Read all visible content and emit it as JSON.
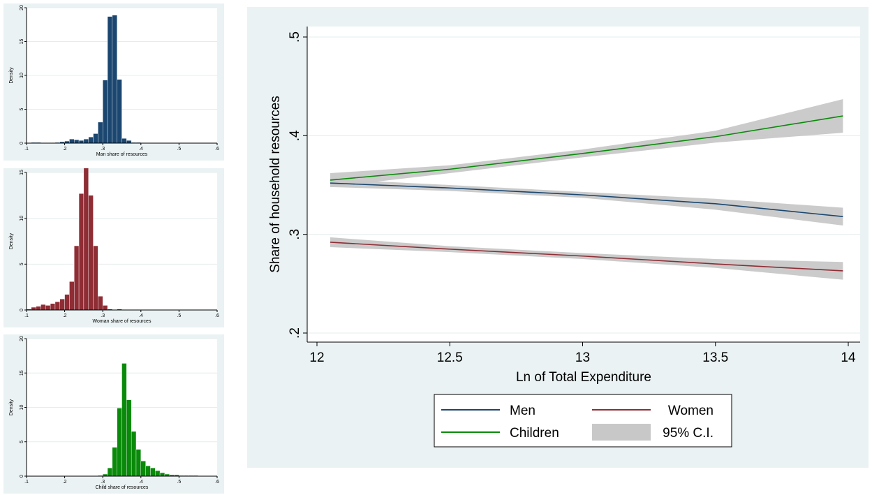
{
  "chart_data": [
    {
      "id": "man_hist",
      "type": "bar",
      "xlabel": "Man share of resources",
      "ylabel": "Density",
      "xlim": [
        0.1,
        0.6
      ],
      "ylim": [
        0,
        20
      ],
      "xticks": [
        ".1",
        ".2",
        ".3",
        ".4",
        ".5",
        ".6"
      ],
      "yticks": [
        "0",
        "5",
        "10",
        "15",
        "20"
      ],
      "color": "#1a4670",
      "bin_start": 0.1,
      "bin_width": 0.0125,
      "values": [
        0,
        0.1,
        0.1,
        0,
        0,
        0,
        0.1,
        0.2,
        0.3,
        0.6,
        0.5,
        0.4,
        0.6,
        0.9,
        1.4,
        3.1,
        9.3,
        18.7,
        18.9,
        9.4,
        0.7,
        0.4,
        0.1,
        0.1,
        0,
        0,
        0,
        0,
        0,
        0,
        0,
        0,
        0,
        0,
        0,
        0,
        0,
        0,
        0,
        0
      ]
    },
    {
      "id": "woman_hist",
      "type": "bar",
      "xlabel": "Woman share of resources",
      "ylabel": "Density",
      "xlim": [
        0.1,
        0.6
      ],
      "ylim": [
        0,
        15
      ],
      "xticks": [
        ".1",
        ".2",
        ".3",
        ".4",
        ".5",
        ".6"
      ],
      "yticks": [
        "0",
        "5",
        "10",
        "15"
      ],
      "color": "#8f2d35",
      "bin_start": 0.1,
      "bin_width": 0.0125,
      "values": [
        0.1,
        0.3,
        0.4,
        0.6,
        0.5,
        0.7,
        0.9,
        1.2,
        1.7,
        3.1,
        7.0,
        12.7,
        15.6,
        12.5,
        7.0,
        1.5,
        0.5,
        0.1,
        0,
        0.1,
        0,
        0,
        0,
        0,
        0,
        0,
        0,
        0,
        0,
        0,
        0,
        0,
        0,
        0,
        0,
        0,
        0,
        0,
        0,
        0
      ]
    },
    {
      "id": "child_hist",
      "type": "bar",
      "xlabel": "Child share of resources",
      "ylabel": "Density",
      "xlim": [
        0.1,
        0.6
      ],
      "ylim": [
        0,
        20
      ],
      "xticks": [
        ".1",
        ".2",
        ".3",
        ".4",
        ".5",
        ".6"
      ],
      "yticks": [
        "0",
        "5",
        "10",
        "15",
        "20"
      ],
      "color": "#0a8a0a",
      "bin_start": 0.1,
      "bin_width": 0.0125,
      "values": [
        0,
        0,
        0,
        0,
        0,
        0,
        0,
        0,
        0,
        0,
        0,
        0,
        0,
        0,
        0,
        0.1,
        0.3,
        1.2,
        4.2,
        9.9,
        16.4,
        11.1,
        6.5,
        3.9,
        2.2,
        1.5,
        1.2,
        0.8,
        0.5,
        0.3,
        0.2,
        0.2,
        0.1,
        0.1,
        0.1,
        0.1,
        0,
        0,
        0,
        0
      ]
    },
    {
      "id": "shares_line",
      "type": "line",
      "xlabel": "Ln of Total Expenditure",
      "ylabel": "Share of household resources",
      "xlim": [
        12,
        14
      ],
      "ylim": [
        0.2,
        0.5
      ],
      "xticks": [
        "12",
        "12.5",
        "13",
        "13.5",
        "14"
      ],
      "yticks": [
        ".2",
        ".3",
        ".4",
        ".5"
      ],
      "x": [
        12.05,
        12.5,
        13.0,
        13.5,
        13.98
      ],
      "series": [
        {
          "name": "Men",
          "color": "#1a4670",
          "values": [
            0.352,
            0.347,
            0.34,
            0.331,
            0.318
          ],
          "ci_low": [
            0.348,
            0.344,
            0.337,
            0.325,
            0.309
          ],
          "ci_high": [
            0.356,
            0.35,
            0.343,
            0.336,
            0.327
          ]
        },
        {
          "name": "Women",
          "color": "#8f2d35",
          "values": [
            0.292,
            0.285,
            0.278,
            0.27,
            0.263
          ],
          "ci_low": [
            0.287,
            0.282,
            0.275,
            0.266,
            0.254
          ],
          "ci_high": [
            0.297,
            0.288,
            0.281,
            0.275,
            0.272
          ]
        },
        {
          "name": "Children",
          "color": "#0a8a0a",
          "values": [
            0.355,
            0.366,
            0.382,
            0.399,
            0.42
          ],
          "ci_low": [
            0.348,
            0.362,
            0.378,
            0.393,
            0.403
          ],
          "ci_high": [
            0.362,
            0.37,
            0.386,
            0.405,
            0.437
          ]
        }
      ],
      "ci_label": "95% C.I.",
      "ci_color": "#c8c8c8",
      "legend": {
        "placement": "bottom",
        "items": [
          "Men",
          "Women",
          "Children",
          "95% C.I."
        ]
      }
    }
  ]
}
